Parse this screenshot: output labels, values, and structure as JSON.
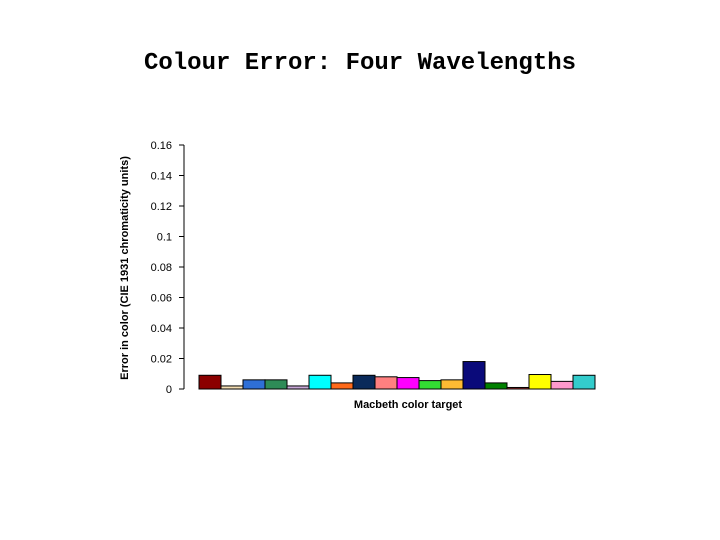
{
  "slide": {
    "title": "Colour Error: Four Wavelengths"
  },
  "chart_data": {
    "type": "bar",
    "title": "",
    "xlabel": "Macbeth color target",
    "ylabel": "Error in color (CIE 1931 chromaticity units)",
    "ylim": [
      0,
      0.16
    ],
    "yticks": [
      0,
      0.02,
      0.04,
      0.06,
      0.08,
      0.1,
      0.12,
      0.14,
      0.16
    ],
    "ytick_labels": [
      "0",
      "0.02",
      "0.04",
      "0.06",
      "0.08",
      "0.1",
      "0.12",
      "0.14",
      "0.16"
    ],
    "grid": false,
    "legend": "none",
    "values": [
      0.009,
      0.002,
      0.006,
      0.006,
      0.002,
      0.009,
      0.004,
      0.009,
      0.008,
      0.0075,
      0.0055,
      0.006,
      0.018,
      0.004,
      0.001,
      0.0095,
      0.005,
      0.009
    ],
    "colors": [
      "#8b0000",
      "#f5deb3",
      "#2f6fd6",
      "#2e8b57",
      "#c8a8d8",
      "#00ffff",
      "#ff6a1a",
      "#0a2a5a",
      "#ff8080",
      "#ff00ff",
      "#33dd33",
      "#ffbb33",
      "#0a0a7a",
      "#008000",
      "#b03030",
      "#ffff00",
      "#ff99cc",
      "#33cccc"
    ]
  }
}
